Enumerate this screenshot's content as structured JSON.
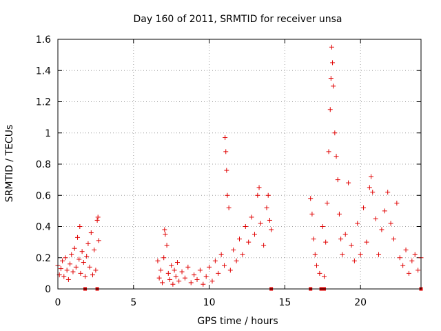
{
  "chart_data": {
    "type": "scatter",
    "title": "Day 160 of 2011, SRMTID for receiver unsa",
    "xlabel": "GPS time / hours",
    "ylabel": "SRMTID / TECUs",
    "xlim": [
      0,
      24
    ],
    "ylim": [
      0,
      1.6
    ],
    "grid": true,
    "marker": "+",
    "x_ticks": [
      0,
      5,
      10,
      15,
      20
    ],
    "x_tick_labels": [
      "0",
      "5",
      "10",
      "15",
      "20"
    ],
    "y_ticks": [
      0,
      0.2,
      0.4,
      0.6,
      0.8,
      1,
      1.2,
      1.4,
      1.6
    ],
    "y_tick_labels": [
      "0",
      "0.2",
      "0.4",
      "0.6",
      "0.8",
      "1",
      "1.2",
      "1.4",
      "1.6"
    ],
    "series": [
      {
        "name": "SRMTID",
        "color": "#e00000",
        "points": [
          [
            0.0,
            0.15
          ],
          [
            0.1,
            0.09
          ],
          [
            0.2,
            0.13
          ],
          [
            0.3,
            0.18
          ],
          [
            0.4,
            0.08
          ],
          [
            0.5,
            0.2
          ],
          [
            0.6,
            0.12
          ],
          [
            0.7,
            0.06
          ],
          [
            0.8,
            0.16
          ],
          [
            0.9,
            0.22
          ],
          [
            1.0,
            0.11
          ],
          [
            1.1,
            0.26
          ],
          [
            1.2,
            0.14
          ],
          [
            1.3,
            0.33
          ],
          [
            1.4,
            0.19
          ],
          [
            1.45,
            0.4
          ],
          [
            1.5,
            0.1
          ],
          [
            1.6,
            0.24
          ],
          [
            1.7,
            0.17
          ],
          [
            1.8,
            0.08
          ],
          [
            1.9,
            0.21
          ],
          [
            2.0,
            0.29
          ],
          [
            2.1,
            0.14
          ],
          [
            2.2,
            0.36
          ],
          [
            2.3,
            0.09
          ],
          [
            2.4,
            0.25
          ],
          [
            2.5,
            0.12
          ],
          [
            2.6,
            0.44
          ],
          [
            2.65,
            0.46
          ],
          [
            2.7,
            0.31
          ],
          [
            6.6,
            0.18
          ],
          [
            6.7,
            0.07
          ],
          [
            6.8,
            0.12
          ],
          [
            6.9,
            0.04
          ],
          [
            7.0,
            0.2
          ],
          [
            7.05,
            0.38
          ],
          [
            7.1,
            0.35
          ],
          [
            7.2,
            0.28
          ],
          [
            7.3,
            0.1
          ],
          [
            7.4,
            0.06
          ],
          [
            7.5,
            0.15
          ],
          [
            7.6,
            0.03
          ],
          [
            7.7,
            0.12
          ],
          [
            7.8,
            0.08
          ],
          [
            7.9,
            0.17
          ],
          [
            8.0,
            0.05
          ],
          [
            8.2,
            0.11
          ],
          [
            8.4,
            0.07
          ],
          [
            8.6,
            0.14
          ],
          [
            8.8,
            0.04
          ],
          [
            9.0,
            0.09
          ],
          [
            9.2,
            0.06
          ],
          [
            9.4,
            0.12
          ],
          [
            9.6,
            0.03
          ],
          [
            9.8,
            0.08
          ],
          [
            10.0,
            0.14
          ],
          [
            10.2,
            0.05
          ],
          [
            10.4,
            0.18
          ],
          [
            10.6,
            0.1
          ],
          [
            10.8,
            0.22
          ],
          [
            11.0,
            0.15
          ],
          [
            11.05,
            0.97
          ],
          [
            11.1,
            0.88
          ],
          [
            11.15,
            0.76
          ],
          [
            11.2,
            0.6
          ],
          [
            11.3,
            0.52
          ],
          [
            11.4,
            0.12
          ],
          [
            11.6,
            0.25
          ],
          [
            11.8,
            0.18
          ],
          [
            12.0,
            0.32
          ],
          [
            12.2,
            0.22
          ],
          [
            12.4,
            0.4
          ],
          [
            12.6,
            0.3
          ],
          [
            12.8,
            0.46
          ],
          [
            13.0,
            0.35
          ],
          [
            13.2,
            0.6
          ],
          [
            13.3,
            0.65
          ],
          [
            13.4,
            0.42
          ],
          [
            13.6,
            0.28
          ],
          [
            13.8,
            0.52
          ],
          [
            13.9,
            0.6
          ],
          [
            14.0,
            0.44
          ],
          [
            14.1,
            0.38
          ],
          [
            16.7,
            0.58
          ],
          [
            16.8,
            0.48
          ],
          [
            16.9,
            0.32
          ],
          [
            17.0,
            0.22
          ],
          [
            17.1,
            0.15
          ],
          [
            17.3,
            0.1
          ],
          [
            17.5,
            0.4
          ],
          [
            17.6,
            0.08
          ],
          [
            17.7,
            0.3
          ],
          [
            17.8,
            0.55
          ],
          [
            17.9,
            0.88
          ],
          [
            18.0,
            1.15
          ],
          [
            18.05,
            1.35
          ],
          [
            18.1,
            1.55
          ],
          [
            18.15,
            1.45
          ],
          [
            18.2,
            1.3
          ],
          [
            18.3,
            1.0
          ],
          [
            18.4,
            0.85
          ],
          [
            18.5,
            0.7
          ],
          [
            18.6,
            0.48
          ],
          [
            18.7,
            0.32
          ],
          [
            18.8,
            0.22
          ],
          [
            19.0,
            0.35
          ],
          [
            19.2,
            0.68
          ],
          [
            19.4,
            0.28
          ],
          [
            19.6,
            0.18
          ],
          [
            19.8,
            0.42
          ],
          [
            20.0,
            0.22
          ],
          [
            20.2,
            0.52
          ],
          [
            20.4,
            0.3
          ],
          [
            20.6,
            0.65
          ],
          [
            20.7,
            0.72
          ],
          [
            20.8,
            0.62
          ],
          [
            21.0,
            0.45
          ],
          [
            21.2,
            0.22
          ],
          [
            21.4,
            0.38
          ],
          [
            21.6,
            0.5
          ],
          [
            21.8,
            0.62
          ],
          [
            22.0,
            0.42
          ],
          [
            22.2,
            0.32
          ],
          [
            22.4,
            0.55
          ],
          [
            22.6,
            0.2
          ],
          [
            22.8,
            0.15
          ],
          [
            23.0,
            0.25
          ],
          [
            23.2,
            0.1
          ],
          [
            23.4,
            0.18
          ],
          [
            23.6,
            0.22
          ],
          [
            23.8,
            0.12
          ],
          [
            24.0,
            0.2
          ]
        ]
      }
    ],
    "baseline_markers_x": [
      1.8,
      2.6,
      14.1,
      16.7,
      17.4,
      17.6,
      24.0
    ]
  }
}
